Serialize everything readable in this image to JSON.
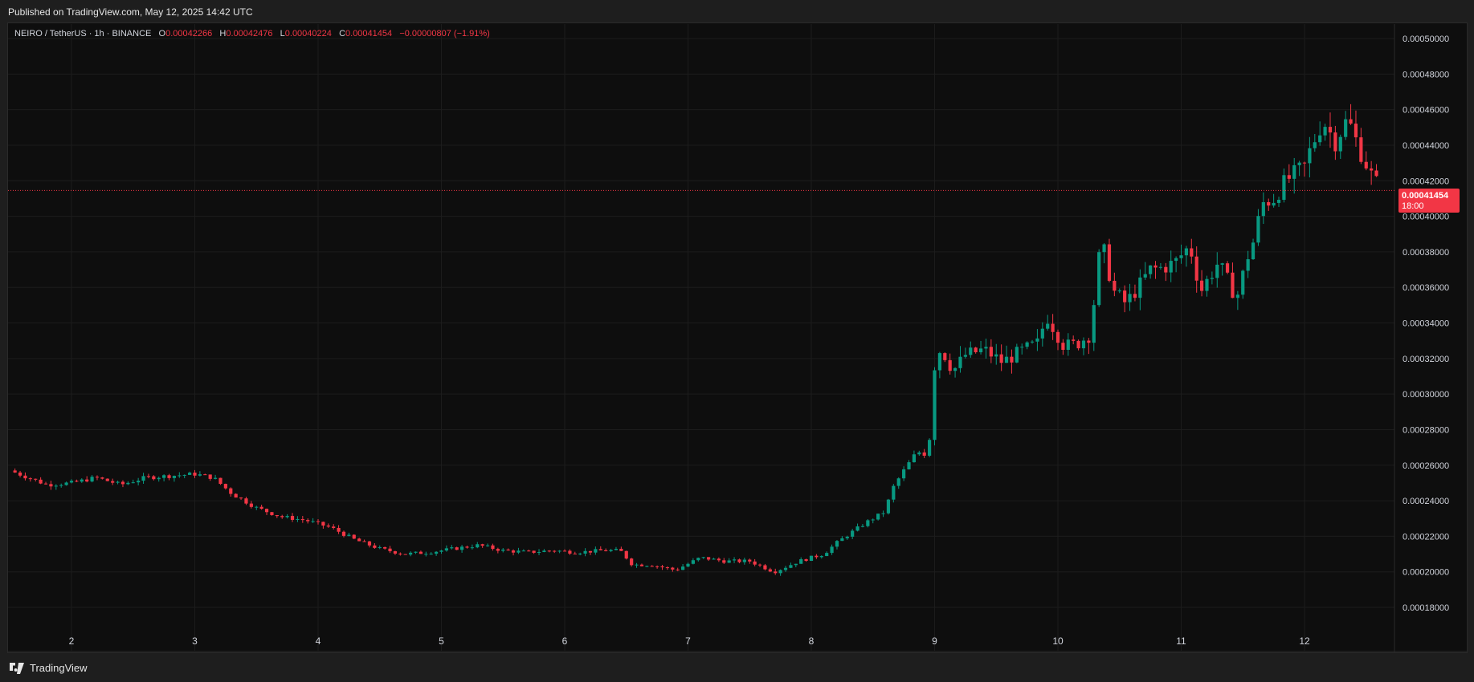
{
  "header": {
    "published": "Published on TradingView.com, May 12, 2025 14:42 UTC"
  },
  "legend": {
    "symbol": "NEIRO / TetherUS · 1h · BINANCE",
    "o_label": "O",
    "o_value": "0.00042266",
    "h_label": "H",
    "h_value": "0.00042476",
    "l_label": "L",
    "l_value": "0.00040224",
    "c_label": "C",
    "c_value": "0.00041454",
    "change": "−0.00000807 (−1.91%)"
  },
  "price_tag": {
    "price": "0.00041454",
    "countdown": "18:00"
  },
  "footer": {
    "brand": "TradingView"
  },
  "colors": {
    "up": "#089981",
    "down": "#f23645",
    "grid": "#1c1c1c",
    "background": "#0e0e0e",
    "text": "#d1d4dc",
    "last_price_line": "#f23645"
  },
  "chart_data": {
    "type": "candlestick",
    "title": "NEIRO / TetherUS · 1h · BINANCE",
    "xlabel": "",
    "ylabel": "",
    "ylim": [
      0.000172,
      0.000508
    ],
    "y_ticks": [
      "0.00018000",
      "0.00020000",
      "0.00022000",
      "0.00024000",
      "0.00026000",
      "0.00028000",
      "0.00030000",
      "0.00032000",
      "0.00034000",
      "0.00036000",
      "0.00038000",
      "0.00040000",
      "0.00042000",
      "0.00044000",
      "0.00046000",
      "0.00048000",
      "0.00050000"
    ],
    "x_ticks": [
      "2",
      "3",
      "4",
      "5",
      "6",
      "7",
      "8",
      "9",
      "10",
      "11",
      "12"
    ],
    "x_tick_days": [
      2,
      3,
      4,
      5,
      6,
      7,
      8,
      9,
      10,
      11,
      12
    ],
    "x_range_days": [
      1.5,
      12.7
    ],
    "last_price": 0.00041454,
    "close_path": [
      [
        1.5,
        0.000257
      ],
      [
        1.8,
        0.000249
      ],
      [
        2.0,
        0.00025
      ],
      [
        2.2,
        0.000253
      ],
      [
        2.4,
        0.000249
      ],
      [
        2.6,
        0.000253
      ],
      [
        2.8,
        0.000254
      ],
      [
        3.0,
        0.000255
      ],
      [
        3.15,
        0.000253
      ],
      [
        3.3,
        0.000244
      ],
      [
        3.5,
        0.000236
      ],
      [
        3.7,
        0.000231
      ],
      [
        3.9,
        0.000229
      ],
      [
        4.1,
        0.000225
      ],
      [
        4.3,
        0.000218
      ],
      [
        4.5,
        0.000213
      ],
      [
        4.7,
        0.00021
      ],
      [
        4.9,
        0.000211
      ],
      [
        5.1,
        0.000213
      ],
      [
        5.3,
        0.000215
      ],
      [
        5.5,
        0.000212
      ],
      [
        5.7,
        0.000211
      ],
      [
        5.9,
        0.000212
      ],
      [
        6.1,
        0.000211
      ],
      [
        6.3,
        0.000212
      ],
      [
        6.45,
        0.000212
      ],
      [
        6.55,
        0.000204
      ],
      [
        6.7,
        0.000204
      ],
      [
        6.9,
        0.000201
      ],
      [
        7.1,
        0.000208
      ],
      [
        7.3,
        0.000206
      ],
      [
        7.5,
        0.000206
      ],
      [
        7.7,
        0.0002
      ],
      [
        7.9,
        0.000206
      ],
      [
        8.1,
        0.00021
      ],
      [
        8.2,
        0.000216
      ],
      [
        8.3,
        0.000221
      ],
      [
        8.45,
        0.000228
      ],
      [
        8.6,
        0.000234
      ],
      [
        8.65,
        0.000246
      ],
      [
        8.75,
        0.000257
      ],
      [
        8.85,
        0.000267
      ],
      [
        8.95,
        0.000268
      ],
      [
        9.0,
        0.000316
      ],
      [
        9.05,
        0.000326
      ],
      [
        9.15,
        0.000313
      ],
      [
        9.25,
        0.000322
      ],
      [
        9.4,
        0.000325
      ],
      [
        9.55,
        0.000318
      ],
      [
        9.7,
        0.000324
      ],
      [
        9.85,
        0.000329
      ],
      [
        9.9,
        0.000345
      ],
      [
        10.05,
        0.000327
      ],
      [
        10.15,
        0.000328
      ],
      [
        10.25,
        0.000333
      ],
      [
        10.3,
        0.000355
      ],
      [
        10.35,
        0.000387
      ],
      [
        10.45,
        0.000358
      ],
      [
        10.55,
        0.000351
      ],
      [
        10.65,
        0.00036
      ],
      [
        10.75,
        0.00037
      ],
      [
        10.85,
        0.000371
      ],
      [
        10.95,
        0.000374
      ],
      [
        11.05,
        0.000382
      ],
      [
        11.1,
        0.000378
      ],
      [
        11.15,
        0.000357
      ],
      [
        11.3,
        0.000374
      ],
      [
        11.45,
        0.000354
      ],
      [
        11.55,
        0.00038
      ],
      [
        11.6,
        0.000388
      ],
      [
        11.65,
        0.000407
      ],
      [
        11.75,
        0.00041
      ],
      [
        11.85,
        0.00042
      ],
      [
        12.0,
        0.000428
      ],
      [
        12.05,
        0.000438
      ],
      [
        12.15,
        0.000454
      ],
      [
        12.25,
        0.000442
      ],
      [
        12.35,
        0.000455
      ],
      [
        12.45,
        0.000437
      ],
      [
        12.55,
        0.000422
      ],
      [
        12.62,
        0.000415
      ]
    ]
  }
}
